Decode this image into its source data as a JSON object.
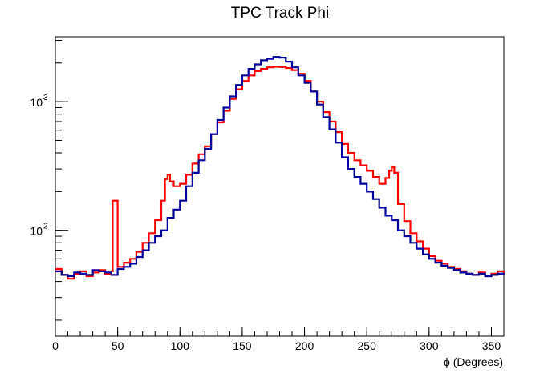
{
  "chart_data": {
    "type": "line",
    "title": "TPC Track Phi",
    "xlabel": "ϕ (Degrees)",
    "ylabel": "",
    "xlim": [
      0,
      360
    ],
    "ylim": [
      15,
      3200
    ],
    "yscale": "log",
    "grid": false,
    "legend": "none",
    "x_ticks": [
      0,
      50,
      100,
      150,
      200,
      250,
      300,
      350
    ],
    "x_tick_labels": [
      "0",
      "50",
      "100",
      "150",
      "200",
      "250",
      "300",
      "350"
    ],
    "y_ticks": [
      100,
      1000
    ],
    "y_tick_labels": [
      {
        "base": "10",
        "exp": "2"
      },
      {
        "base": "10",
        "exp": "3"
      }
    ],
    "series": [
      {
        "color": "#ff0000",
        "x": [
          0,
          5,
          10,
          15,
          20,
          25,
          30,
          35,
          40,
          45,
          46,
          50,
          55,
          60,
          65,
          70,
          75,
          80,
          85,
          88,
          90,
          92,
          95,
          100,
          105,
          110,
          115,
          120,
          125,
          130,
          135,
          140,
          145,
          150,
          155,
          160,
          165,
          170,
          175,
          180,
          185,
          190,
          195,
          200,
          205,
          210,
          215,
          220,
          225,
          230,
          235,
          240,
          245,
          250,
          255,
          260,
          265,
          268,
          270,
          272,
          275,
          280,
          285,
          290,
          295,
          300,
          305,
          310,
          315,
          320,
          325,
          330,
          335,
          340,
          345,
          350,
          355,
          360
        ],
        "y": [
          50,
          45,
          42,
          46,
          48,
          44,
          47,
          49,
          46,
          48,
          170,
          52,
          56,
          60,
          68,
          80,
          95,
          120,
          170,
          250,
          270,
          240,
          220,
          230,
          270,
          330,
          390,
          450,
          560,
          690,
          850,
          1050,
          1250,
          1450,
          1600,
          1730,
          1800,
          1850,
          1870,
          1860,
          1830,
          1760,
          1650,
          1450,
          1200,
          1000,
          830,
          700,
          580,
          470,
          400,
          350,
          320,
          290,
          260,
          230,
          255,
          290,
          310,
          280,
          160,
          118,
          95,
          82,
          72,
          63,
          58,
          55,
          52,
          50,
          48,
          46,
          45,
          47,
          44,
          46,
          48,
          46
        ]
      },
      {
        "color": "#00009b",
        "x": [
          0,
          5,
          10,
          15,
          20,
          25,
          30,
          35,
          40,
          45,
          50,
          55,
          60,
          65,
          70,
          75,
          80,
          85,
          90,
          95,
          100,
          105,
          110,
          115,
          120,
          125,
          130,
          135,
          140,
          145,
          150,
          155,
          160,
          165,
          170,
          175,
          180,
          185,
          190,
          195,
          200,
          205,
          210,
          215,
          220,
          225,
          230,
          235,
          240,
          245,
          250,
          255,
          260,
          265,
          270,
          275,
          280,
          285,
          290,
          295,
          300,
          305,
          310,
          315,
          320,
          325,
          330,
          335,
          340,
          345,
          350,
          355,
          360
        ],
        "y": [
          48,
          45,
          44,
          47,
          46,
          45,
          49,
          48,
          47,
          45,
          50,
          52,
          55,
          62,
          70,
          80,
          90,
          100,
          125,
          145,
          170,
          220,
          280,
          350,
          430,
          560,
          720,
          900,
          1100,
          1350,
          1600,
          1800,
          1950,
          2100,
          2150,
          2230,
          2200,
          2050,
          1850,
          1600,
          1400,
          1200,
          950,
          760,
          610,
          480,
          370,
          300,
          260,
          230,
          200,
          175,
          150,
          130,
          120,
          100,
          90,
          80,
          72,
          65,
          60,
          56,
          53,
          51,
          49,
          47,
          46,
          45,
          46,
          44,
          45,
          46,
          45
        ]
      }
    ]
  }
}
